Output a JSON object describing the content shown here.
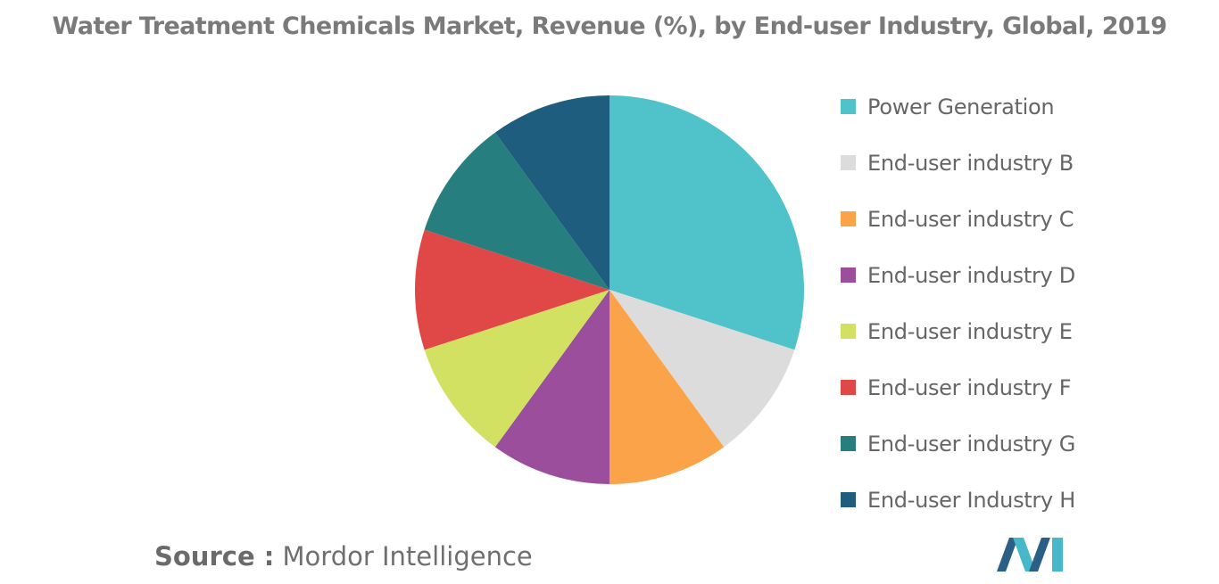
{
  "chart_data": {
    "type": "pie",
    "title": "Water Treatment Chemicals Market, Revenue (%), by End-user Industry, Global, 2019",
    "categories": [
      "Power Generation",
      "End-user industry B",
      "End-user industry C",
      "End-user industry D",
      "End-user industry E",
      "End-user industry F",
      "End-user industry G",
      "End-user Industry H"
    ],
    "values": [
      30,
      10,
      10,
      10,
      10,
      10,
      10,
      10
    ],
    "colors": [
      "#4fc3c9",
      "#dcdcdc",
      "#fba348",
      "#9a4e9c",
      "#d3e163",
      "#e04848",
      "#267e7e",
      "#1f5d7f"
    ],
    "legend_position": "right",
    "start_angle": "12 o'clock, clockwise"
  },
  "source": {
    "label": "Source :",
    "value": "Mordor Intelligence"
  },
  "logo": {
    "icon": "mordor-intelligence-logo",
    "colors": [
      "#2c5f85",
      "#46b8c9"
    ]
  }
}
